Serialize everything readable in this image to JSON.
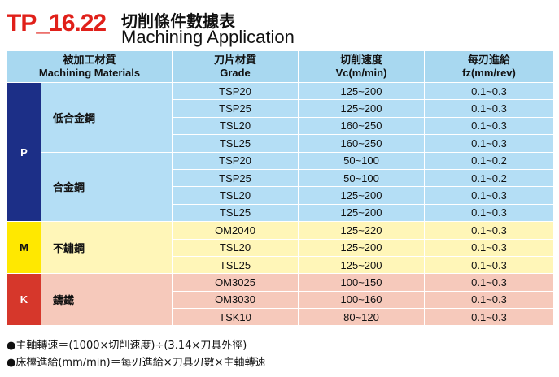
{
  "header": {
    "code": "TP_16.22",
    "title_zh": "切削條件數據表",
    "title_en": "Machining Application"
  },
  "table": {
    "columns": [
      {
        "zh": "被加工材質",
        "en": "Machining Materials"
      },
      {
        "zh": "刀片材質",
        "en": "Grade"
      },
      {
        "zh": "切削速度",
        "en": "Vc(m/min)"
      },
      {
        "zh": "每刃進給",
        "en": "fz(mm/rev)"
      }
    ],
    "groups": [
      {
        "code": "P",
        "color": "#1c2f87",
        "row_color": "#b4def5",
        "materials": [
          {
            "name": "低合金鋼",
            "rows": [
              {
                "grade": "TSP20",
                "vc": "125~200",
                "fz": "0.1~0.3"
              },
              {
                "grade": "TSP25",
                "vc": "125~200",
                "fz": "0.1~0.3"
              },
              {
                "grade": "TSL20",
                "vc": "160~250",
                "fz": "0.1~0.3"
              },
              {
                "grade": "TSL25",
                "vc": "160~250",
                "fz": "0.1~0.3"
              }
            ]
          },
          {
            "name": "合金鋼",
            "rows": [
              {
                "grade": "TSP20",
                "vc": "50~100",
                "fz": "0.1~0.2"
              },
              {
                "grade": "TSP25",
                "vc": "50~100",
                "fz": "0.1~0.2"
              },
              {
                "grade": "TSL20",
                "vc": "125~200",
                "fz": "0.1~0.3"
              },
              {
                "grade": "TSL25",
                "vc": "125~200",
                "fz": "0.1~0.3"
              }
            ]
          }
        ]
      },
      {
        "code": "M",
        "color": "#ffe800",
        "row_color": "#fff6b8",
        "materials": [
          {
            "name": "不鏽鋼",
            "rows": [
              {
                "grade": "OM2040",
                "vc": "125~220",
                "fz": "0.1~0.3"
              },
              {
                "grade": "TSL20",
                "vc": "125~200",
                "fz": "0.1~0.3"
              },
              {
                "grade": "TSL25",
                "vc": "125~200",
                "fz": "0.1~0.3"
              }
            ]
          }
        ]
      },
      {
        "code": "K",
        "color": "#d6372b",
        "row_color": "#f6c9bb",
        "materials": [
          {
            "name": "鑄鐵",
            "rows": [
              {
                "grade": "OM3025",
                "vc": "100~150",
                "fz": "0.1~0.3"
              },
              {
                "grade": "OM3030",
                "vc": "100~160",
                "fz": "0.1~0.3"
              },
              {
                "grade": "TSK10",
                "vc": "80~120",
                "fz": "0.1~0.3"
              }
            ]
          }
        ]
      }
    ]
  },
  "notes": [
    "●主軸轉速＝(1000×切削速度)÷(3.14×刀具外徑)",
    "●床檯進給(mm/min)＝每刃進給×刀具刃數×主軸轉速"
  ]
}
